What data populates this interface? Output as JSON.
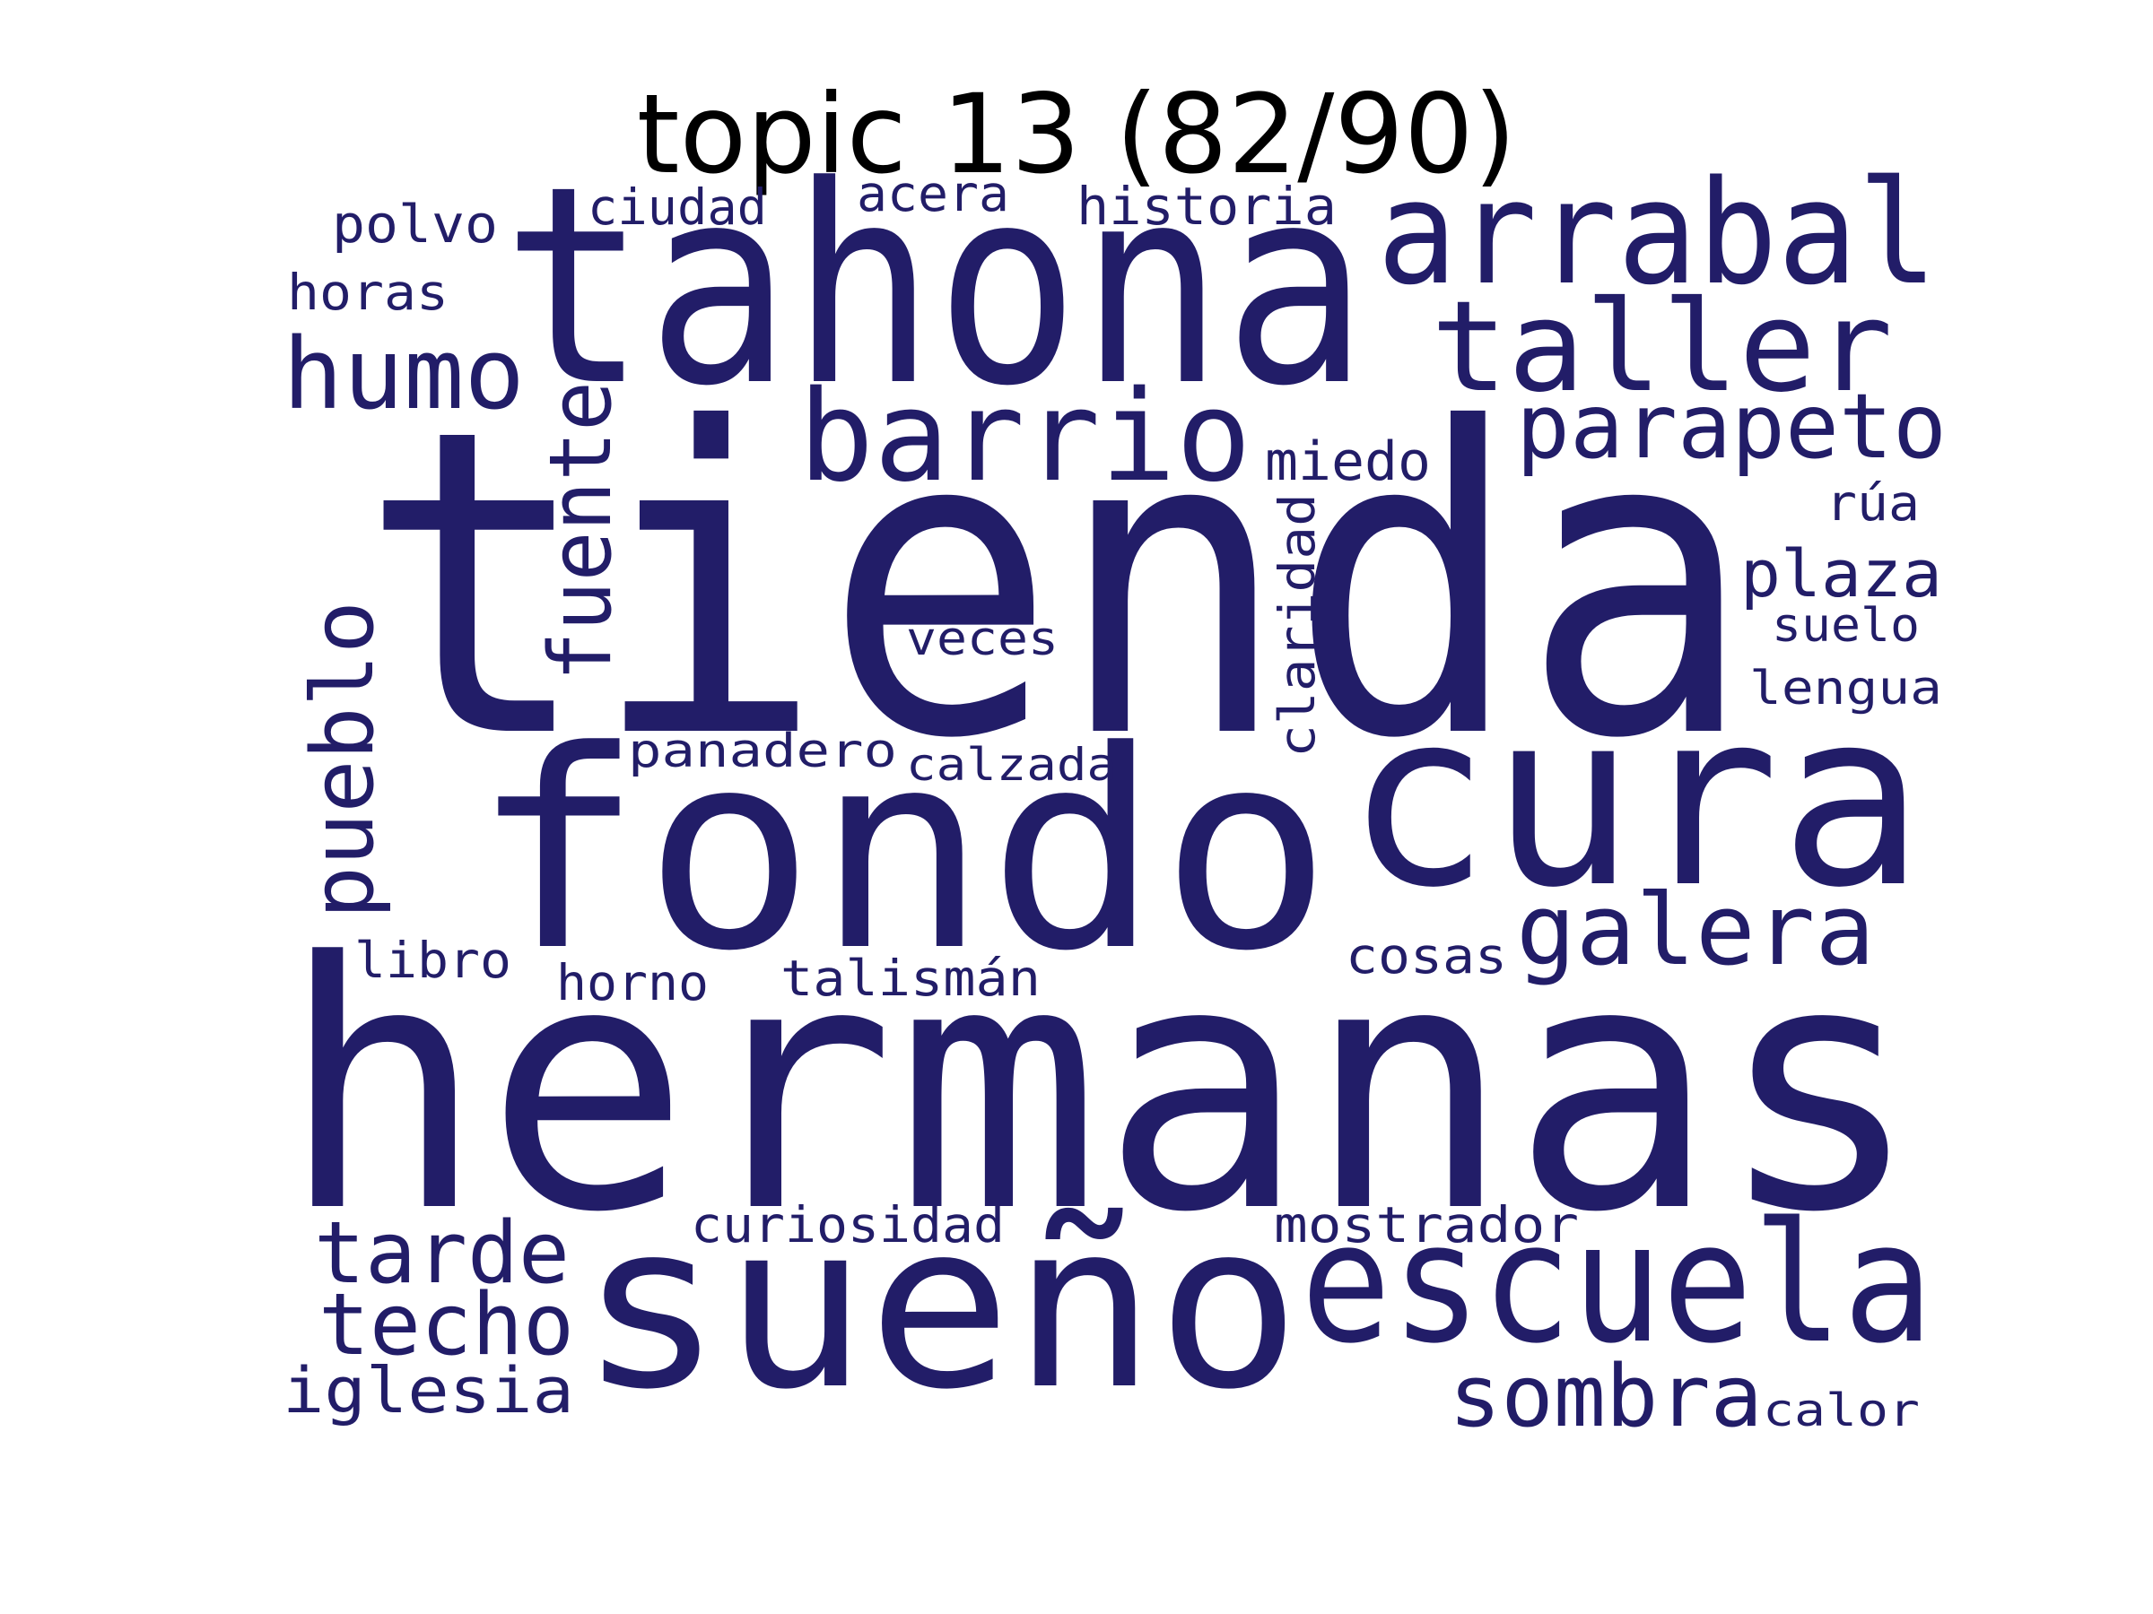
{
  "title": "topic 13 (82/90)",
  "colors": {
    "word": "#221d68",
    "title": "#000000",
    "background": "#ffffff"
  },
  "words": [
    {
      "key": "tienda",
      "text": "tienda"
    },
    {
      "key": "hermanas",
      "text": "hermanas"
    },
    {
      "key": "tahona",
      "text": "tahona"
    },
    {
      "key": "fondo",
      "text": "fondo"
    },
    {
      "key": "cura",
      "text": "cura"
    },
    {
      "key": "sueno",
      "text": "sueño"
    },
    {
      "key": "escuela",
      "text": "escuela"
    },
    {
      "key": "arrabal",
      "text": "arrabal"
    },
    {
      "key": "taller",
      "text": "taller"
    },
    {
      "key": "barrio",
      "text": "barrio"
    },
    {
      "key": "humo",
      "text": "humo"
    },
    {
      "key": "parapeto",
      "text": "parapeto"
    },
    {
      "key": "fuente",
      "text": "fuente"
    },
    {
      "key": "pueblo",
      "text": "pueblo"
    },
    {
      "key": "galera",
      "text": "galera"
    },
    {
      "key": "tarde",
      "text": "tarde"
    },
    {
      "key": "techo",
      "text": "techo"
    },
    {
      "key": "sombra",
      "text": "sombra"
    },
    {
      "key": "iglesia",
      "text": "iglesia"
    },
    {
      "key": "plaza",
      "text": "plaza"
    },
    {
      "key": "miedo",
      "text": "miedo"
    },
    {
      "key": "historia",
      "text": "historia"
    },
    {
      "key": "polvo",
      "text": "polvo"
    },
    {
      "key": "ciudad",
      "text": "ciudad"
    },
    {
      "key": "acera",
      "text": "acera"
    },
    {
      "key": "horas",
      "text": "horas"
    },
    {
      "key": "rua",
      "text": "rúa"
    },
    {
      "key": "claridad",
      "text": "claridad"
    },
    {
      "key": "suelo",
      "text": "suelo"
    },
    {
      "key": "veces",
      "text": "veces"
    },
    {
      "key": "lengua",
      "text": "lengua"
    },
    {
      "key": "panadero",
      "text": "panadero"
    },
    {
      "key": "calzada",
      "text": "calzada"
    },
    {
      "key": "libro",
      "text": "libro"
    },
    {
      "key": "horno",
      "text": "horno"
    },
    {
      "key": "talisman",
      "text": "talismán"
    },
    {
      "key": "cosas",
      "text": "cosas"
    },
    {
      "key": "curiosidad",
      "text": "curiosidad"
    },
    {
      "key": "mostrador",
      "text": "mostrador"
    },
    {
      "key": "calor",
      "text": "calor"
    }
  ]
}
